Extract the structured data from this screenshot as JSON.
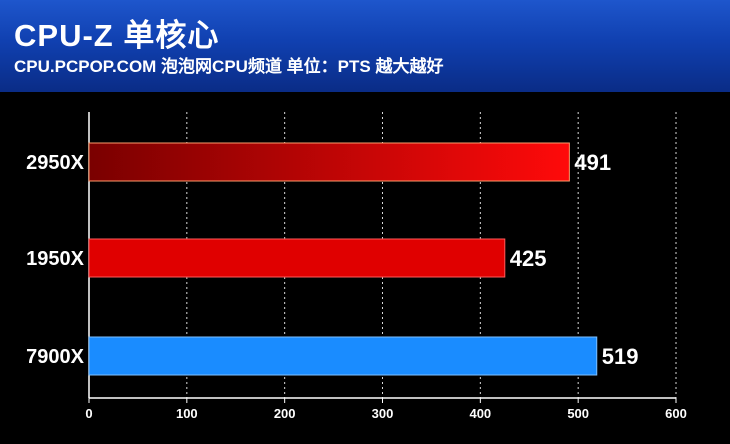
{
  "header": {
    "title": "CPU-Z 单核心",
    "subtitle": "CPU.PCPOP.COM 泡泡网CPU频道 单位：PTS 越大越好"
  },
  "chart_data": {
    "type": "bar",
    "orientation": "horizontal",
    "categories": [
      "2950X",
      "1950X",
      "7900X"
    ],
    "values": [
      491,
      425,
      519
    ],
    "bar_colors": [
      "#e01010",
      "#e00000",
      "#1a8cff"
    ],
    "xlim": [
      0,
      600
    ],
    "xticks": [
      0,
      100,
      200,
      300,
      400,
      500,
      600
    ],
    "grid": "vertical-dashed",
    "legend": "none"
  }
}
